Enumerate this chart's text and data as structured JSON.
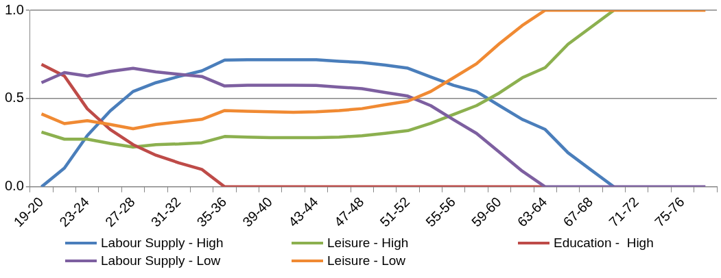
{
  "chart_data": {
    "type": "line",
    "categories": [
      "19-20",
      null,
      "23-24",
      null,
      "27-28",
      null,
      "31-32",
      null,
      "35-36",
      null,
      "39-40",
      null,
      "43-44",
      null,
      "47-48",
      null,
      "51-52",
      null,
      "55-56",
      null,
      "59-60",
      null,
      "63-64",
      null,
      "67-68",
      null,
      "71-72",
      null,
      "75-76",
      null
    ],
    "series": [
      {
        "name": "Labour Supply - High",
        "color": "#4a7ebb",
        "values": [
          0,
          0.106,
          0.29,
          0.43,
          0.54,
          0.59,
          0.625,
          0.657,
          0.718,
          0.72,
          0.72,
          0.72,
          0.72,
          0.711,
          0.704,
          0.69,
          0.672,
          0.622,
          0.575,
          0.54,
          0.46,
          0.382,
          0.325,
          0.193,
          0.096,
          0,
          null,
          null,
          null,
          null
        ]
      },
      {
        "name": "Leisure - High",
        "color": "#8cb04f",
        "values": [
          0.31,
          0.27,
          0.27,
          0.246,
          0.225,
          0.239,
          0.243,
          0.25,
          0.285,
          0.282,
          0.279,
          0.279,
          0.279,
          0.282,
          0.289,
          0.303,
          0.318,
          0.36,
          0.41,
          0.46,
          0.532,
          0.618,
          0.675,
          0.808,
          0.904,
          1,
          null,
          null,
          null,
          null
        ]
      },
      {
        "name": "Education -  High",
        "color": "#be4b48",
        "values": [
          0.694,
          0.628,
          0.442,
          0.325,
          0.239,
          0.179,
          0.136,
          0.099,
          0,
          0,
          0,
          0,
          0,
          0,
          0,
          0,
          0,
          0,
          0,
          0,
          0,
          0,
          0,
          null,
          null,
          null,
          null,
          null,
          null,
          null
        ]
      },
      {
        "name": "Labour Supply - Low",
        "color": "#7d5fa0",
        "values": [
          0.59,
          0.647,
          0.628,
          0.654,
          0.671,
          0.651,
          0.637,
          0.625,
          0.571,
          0.575,
          0.575,
          0.575,
          0.574,
          0.565,
          0.556,
          0.535,
          0.514,
          0.46,
          0.38,
          0.303,
          0.196,
          0.089,
          0,
          0,
          0,
          0,
          0,
          0,
          0,
          0
        ]
      },
      {
        "name": "Leisure - Low",
        "color": "#f08a33",
        "values": [
          0.413,
          0.358,
          0.375,
          0.353,
          0.329,
          0.353,
          0.368,
          0.382,
          0.432,
          0.428,
          0.425,
          0.422,
          0.425,
          0.432,
          0.443,
          0.465,
          0.485,
          0.54,
          0.618,
          0.697,
          0.811,
          0.914,
          1,
          1,
          1,
          1,
          1,
          1,
          1,
          1
        ]
      }
    ],
    "ylim": [
      0,
      1
    ],
    "yticks": [
      {
        "value": 0,
        "label": "0.0"
      },
      {
        "value": 0.5,
        "label": "0.5"
      },
      {
        "value": 1,
        "label": "1.0"
      }
    ],
    "grid": "y",
    "legend": "bottom",
    "marker": "none",
    "line_style": "solid"
  }
}
